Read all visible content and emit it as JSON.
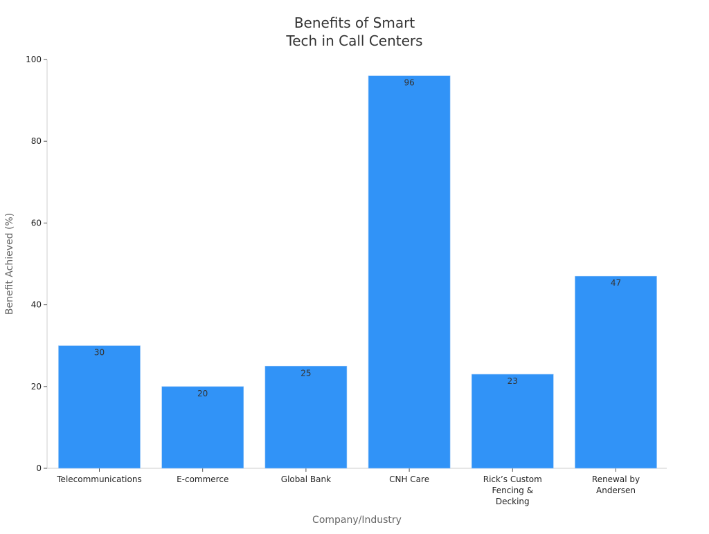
{
  "chart_data": {
    "type": "bar",
    "title_lines": [
      "Benefits of Smart",
      "Tech in Call Centers"
    ],
    "xlabel": "Company/Industry",
    "ylabel": "Benefit Achieved (%)",
    "categories": [
      [
        "Telecommunications"
      ],
      [
        "E-commerce"
      ],
      [
        "Global Bank"
      ],
      [
        "CNH Care"
      ],
      [
        "Rick’s Custom",
        "Fencing &",
        "Decking"
      ],
      [
        "Renewal by",
        "Andersen"
      ]
    ],
    "values": [
      30,
      20,
      25,
      96,
      23,
      47
    ],
    "ylim": [
      0,
      100
    ],
    "yticks": [
      0,
      20,
      40,
      60,
      80,
      100
    ],
    "bar_color": "#3193f7",
    "grid": false,
    "legend": "none"
  }
}
